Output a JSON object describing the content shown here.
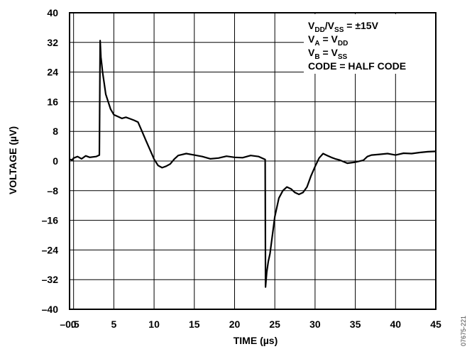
{
  "chart_data": {
    "type": "line",
    "title": "",
    "xlabel": "TIME (µs)",
    "ylabel": "VOLTAGE (µV)",
    "xlim": [
      -0.5,
      45
    ],
    "ylim": [
      -40,
      40
    ],
    "x_ticks": [
      -0.5,
      0,
      5,
      10,
      15,
      20,
      25,
      30,
      35,
      40,
      45
    ],
    "x_tick_labels": [
      "–0.5",
      "0",
      "5",
      "10",
      "15",
      "20",
      "25",
      "30",
      "35",
      "40",
      "45"
    ],
    "y_ticks": [
      40,
      32,
      24,
      16,
      8,
      0,
      -8,
      -16,
      -24,
      -32,
      -40
    ],
    "y_tick_labels": [
      "40",
      "32",
      "24",
      "16",
      "8",
      "0",
      "–8",
      "–16",
      "–24",
      "–32",
      "–40"
    ],
    "grid": true,
    "annotation": {
      "line1": {
        "pre": "V",
        "sub1": "DD",
        "mid": "/V",
        "sub2": "SS",
        "post": " = ±15V"
      },
      "line2": {
        "pre": "V",
        "sub1": "A",
        "mid": " = V",
        "sub2": "DD"
      },
      "line3": {
        "pre": "V",
        "sub1": "B",
        "mid": " = V",
        "sub2": "SS"
      },
      "line4": "CODE = HALF CODE"
    },
    "series": [
      {
        "color": "#000000",
        "points": [
          [
            -0.4,
            0.5
          ],
          [
            -0.2,
            0.2
          ],
          [
            0,
            0.8
          ],
          [
            0.5,
            1.2
          ],
          [
            1,
            0.6
          ],
          [
            1.5,
            1.4
          ],
          [
            2,
            1.0
          ],
          [
            2.8,
            1.2
          ],
          [
            3.2,
            1.6
          ],
          [
            3.3,
            32.5
          ],
          [
            3.4,
            28
          ],
          [
            3.5,
            26
          ],
          [
            3.6,
            24
          ],
          [
            3.8,
            21
          ],
          [
            4.0,
            18
          ],
          [
            4.3,
            16
          ],
          [
            4.6,
            14
          ],
          [
            5,
            12.5
          ],
          [
            5.5,
            12
          ],
          [
            6,
            11.5
          ],
          [
            6.5,
            11.8
          ],
          [
            7,
            11.4
          ],
          [
            7.5,
            11
          ],
          [
            8,
            10.5
          ],
          [
            8.5,
            8
          ],
          [
            9,
            5.5
          ],
          [
            9.5,
            3
          ],
          [
            10,
            0.5
          ],
          [
            10.5,
            -1.2
          ],
          [
            11,
            -1.8
          ],
          [
            11.5,
            -1.4
          ],
          [
            12,
            -0.8
          ],
          [
            12.5,
            0.5
          ],
          [
            13,
            1.5
          ],
          [
            14,
            2.0
          ],
          [
            15,
            1.6
          ],
          [
            16,
            1.2
          ],
          [
            17,
            0.6
          ],
          [
            18,
            0.8
          ],
          [
            19,
            1.3
          ],
          [
            20,
            1.0
          ],
          [
            21,
            0.9
          ],
          [
            22,
            1.5
          ],
          [
            23,
            1.2
          ],
          [
            23.8,
            0.4
          ],
          [
            23.85,
            -34
          ],
          [
            24.0,
            -30
          ],
          [
            24.2,
            -27
          ],
          [
            24.4,
            -25
          ],
          [
            24.7,
            -20
          ],
          [
            25,
            -15
          ],
          [
            25.5,
            -10
          ],
          [
            26,
            -8
          ],
          [
            26.5,
            -7
          ],
          [
            27,
            -7.5
          ],
          [
            27.5,
            -8.5
          ],
          [
            28,
            -9
          ],
          [
            28.5,
            -8.5
          ],
          [
            29,
            -7
          ],
          [
            29.5,
            -4
          ],
          [
            30,
            -1.5
          ],
          [
            30.5,
            0.8
          ],
          [
            31,
            2.0
          ],
          [
            31.5,
            1.5
          ],
          [
            32,
            1.0
          ],
          [
            32.5,
            0.6
          ],
          [
            33,
            0.3
          ],
          [
            34,
            -0.6
          ],
          [
            35,
            -0.3
          ],
          [
            36,
            0.2
          ],
          [
            36.5,
            1.2
          ],
          [
            37,
            1.6
          ],
          [
            38,
            1.8
          ],
          [
            39,
            2.0
          ],
          [
            40,
            1.6
          ],
          [
            41,
            2.1
          ],
          [
            42,
            2.0
          ],
          [
            43,
            2.3
          ],
          [
            44,
            2.5
          ],
          [
            45,
            2.6
          ]
        ]
      }
    ]
  },
  "figure_id": "07675-221"
}
